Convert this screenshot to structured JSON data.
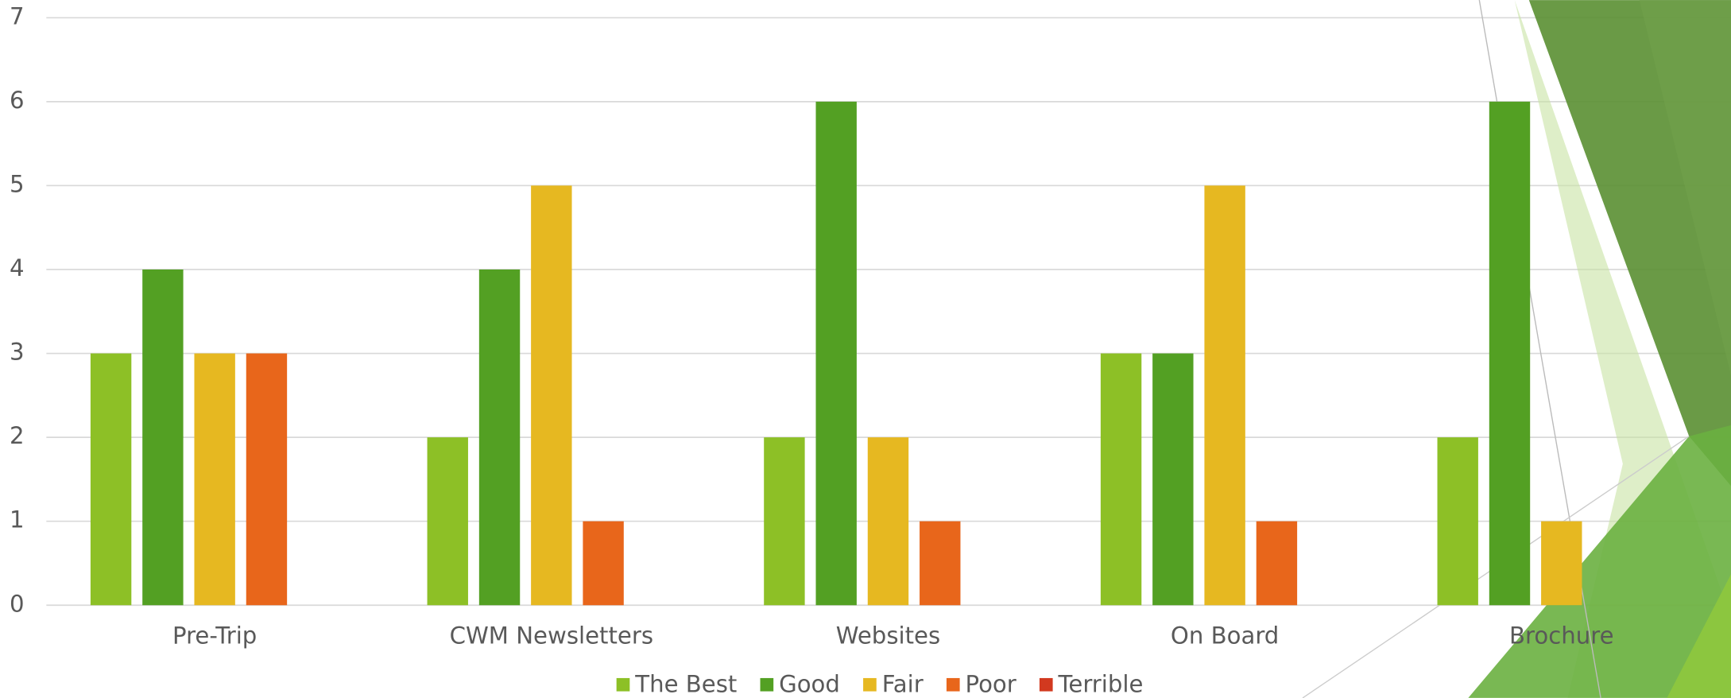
{
  "chart_data": {
    "type": "bar",
    "categories": [
      "Pre-Trip",
      "CWM Newsletters",
      "Websites",
      "On Board",
      "Brochure"
    ],
    "series": [
      {
        "name": "The Best",
        "color": "#8dc026",
        "values": [
          3,
          2,
          2,
          3,
          2
        ]
      },
      {
        "name": "Good",
        "color": "#53a023",
        "values": [
          4,
          4,
          6,
          3,
          6
        ]
      },
      {
        "name": "Fair",
        "color": "#e6b821",
        "values": [
          3,
          5,
          2,
          5,
          1
        ]
      },
      {
        "name": "Poor",
        "color": "#e8661b",
        "values": [
          3,
          1,
          1,
          1,
          0
        ]
      },
      {
        "name": "Terrible",
        "color": "#d2391f",
        "values": [
          0,
          0,
          0,
          0,
          0
        ]
      }
    ],
    "ylim": [
      0,
      7
    ],
    "yticks": [
      0,
      1,
      2,
      3,
      4,
      5,
      6,
      7
    ],
    "grid": true,
    "legend": "bottom"
  }
}
